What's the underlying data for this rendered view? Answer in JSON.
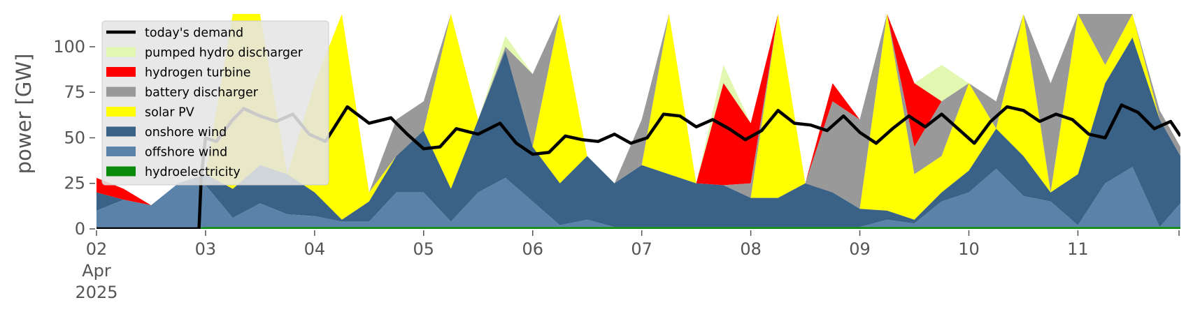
{
  "chart_data": {
    "type": "area",
    "title": "",
    "ylabel": "power [GW]",
    "xlabel": "",
    "ylim": [
      0,
      118
    ],
    "xlim": [
      0,
      9.94
    ],
    "grid": false,
    "legend_position": "upper-left",
    "y_ticks": [
      0,
      25,
      50,
      75,
      100
    ],
    "x_ticks": [
      {
        "pos": 0,
        "lines": [
          "02",
          "Apr",
          "2025"
        ]
      },
      {
        "pos": 1,
        "lines": [
          "03"
        ]
      },
      {
        "pos": 2,
        "lines": [
          "04"
        ]
      },
      {
        "pos": 3,
        "lines": [
          "05"
        ]
      },
      {
        "pos": 4,
        "lines": [
          "06"
        ]
      },
      {
        "pos": 5,
        "lines": [
          "07"
        ]
      },
      {
        "pos": 6,
        "lines": [
          "08"
        ]
      },
      {
        "pos": 7,
        "lines": [
          "09"
        ]
      },
      {
        "pos": 8,
        "lines": [
          "10"
        ]
      },
      {
        "pos": 9,
        "lines": [
          "11"
        ]
      }
    ],
    "x_unit": "days since 2025-04-02 00:00",
    "x": [
      0,
      0.25,
      0.5,
      0.75,
      1,
      1.25,
      1.5,
      1.75,
      2,
      2.25,
      2.5,
      2.75,
      3,
      3.25,
      3.5,
      3.75,
      4,
      4.25,
      4.5,
      4.75,
      5,
      5.25,
      5.5,
      5.75,
      6,
      6.25,
      6.5,
      6.75,
      7,
      7.25,
      7.5,
      7.75,
      8,
      8.25,
      8.5,
      8.75,
      9,
      9.25,
      9.5,
      9.75,
      9.94
    ],
    "series": [
      {
        "name": "hydroelectricity",
        "color": "#0a8a0a",
        "values": [
          0,
          0,
          0,
          0,
          1,
          1,
          1,
          1,
          1,
          1,
          1,
          1,
          1,
          1,
          1,
          1,
          1,
          1,
          1,
          1,
          1,
          1,
          1,
          1,
          1,
          1,
          1,
          1,
          1,
          1,
          1,
          1,
          1,
          1,
          1,
          1,
          1,
          1,
          1,
          1,
          1
        ]
      },
      {
        "name": "offshore wind",
        "color": "#5b82a8",
        "values": [
          10,
          16,
          13,
          25,
          24,
          6,
          14,
          8,
          7,
          4,
          4,
          20,
          20,
          4,
          20,
          28,
          15,
          2,
          5,
          1,
          1,
          1,
          1,
          1,
          1,
          1,
          1,
          1,
          1,
          5,
          3,
          15,
          20,
          33,
          18,
          15,
          2,
          25,
          34,
          1,
          14
        ]
      },
      {
        "name": "onshore wind",
        "color": "#3a6186",
        "values": [
          20,
          16,
          13,
          25,
          30,
          22,
          35,
          30,
          20,
          5,
          15,
          40,
          54,
          22,
          60,
          98,
          45,
          25,
          40,
          25,
          35,
          30,
          25,
          24,
          17,
          17,
          25,
          20,
          11,
          10,
          5,
          20,
          32,
          55,
          40,
          20,
          30,
          80,
          105,
          60,
          40
        ]
      },
      {
        "name": "solar PV",
        "color": "#ffff00",
        "values": [
          20,
          16,
          13,
          25,
          30,
          118,
          118,
          30,
          80,
          118,
          20,
          40,
          54,
          118,
          60,
          98,
          45,
          118,
          40,
          25,
          35,
          118,
          25,
          24,
          17,
          118,
          25,
          20,
          11,
          118,
          30,
          40,
          80,
          55,
          118,
          20,
          118,
          90,
          118,
          60,
          40
        ]
      },
      {
        "name": "battery discharger",
        "color": "#999999",
        "values": [
          20,
          16,
          13,
          25,
          30,
          118,
          118,
          30,
          80,
          118,
          20,
          60,
          70,
          118,
          60,
          100,
          85,
          118,
          40,
          25,
          60,
          118,
          25,
          24,
          25,
          118,
          25,
          70,
          60,
          118,
          45,
          70,
          80,
          70,
          118,
          80,
          118,
          118,
          118,
          65,
          45
        ]
      },
      {
        "name": "hydrogen turbine",
        "color": "#ff0000",
        "values": [
          28,
          22,
          13,
          25,
          30,
          118,
          118,
          30,
          80,
          118,
          20,
          60,
          70,
          118,
          60,
          100,
          85,
          118,
          40,
          25,
          60,
          118,
          25,
          80,
          58,
          118,
          25,
          80,
          60,
          118,
          80,
          70,
          80,
          70,
          118,
          80,
          118,
          118,
          118,
          65,
          45
        ]
      },
      {
        "name": "pumped hydro discharger",
        "color": "#e2f7b0",
        "values": [
          28,
          22,
          13,
          25,
          30,
          118,
          118,
          30,
          80,
          118,
          20,
          60,
          70,
          118,
          60,
          106,
          85,
          118,
          40,
          25,
          60,
          118,
          25,
          90,
          58,
          118,
          25,
          80,
          60,
          118,
          80,
          90,
          80,
          70,
          118,
          80,
          118,
          118,
          118,
          65,
          45
        ]
      }
    ],
    "demand": {
      "name": "today's demand",
      "color": "#000000",
      "x": [
        0,
        0.94,
        0.96,
        1,
        1.1,
        1.25,
        1.35,
        1.5,
        1.65,
        1.8,
        1.95,
        2.1,
        2.3,
        2.5,
        2.7,
        2.85,
        3,
        3.15,
        3.3,
        3.5,
        3.7,
        3.85,
        4,
        4.15,
        4.3,
        4.45,
        4.6,
        4.75,
        4.9,
        5.05,
        5.2,
        5.35,
        5.5,
        5.65,
        5.8,
        5.95,
        6.1,
        6.25,
        6.4,
        6.55,
        6.7,
        6.85,
        7,
        7.15,
        7.3,
        7.45,
        7.6,
        7.75,
        7.9,
        8.05,
        8.2,
        8.35,
        8.5,
        8.65,
        8.8,
        8.95,
        9.1,
        9.25,
        9.4,
        9.55,
        9.7,
        9.85,
        9.94
      ],
      "values": [
        0,
        0,
        28,
        50,
        48,
        60,
        66,
        62,
        59,
        63,
        52,
        48,
        67,
        58,
        61,
        52,
        44,
        45,
        55,
        52,
        58,
        47,
        41,
        42,
        51,
        49,
        48,
        52,
        47,
        50,
        63,
        62,
        56,
        60,
        55,
        49,
        54,
        65,
        58,
        57,
        54,
        62,
        53,
        47,
        55,
        62,
        56,
        63,
        55,
        47,
        59,
        67,
        65,
        59,
        63,
        60,
        52,
        50,
        68,
        64,
        55,
        59,
        51
      ]
    }
  }
}
